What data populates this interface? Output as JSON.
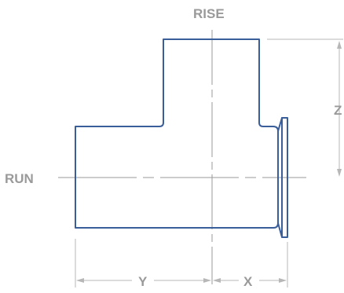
{
  "labels": {
    "rise": "RISE",
    "run": "RUN",
    "z": "Z",
    "y": "Y",
    "x": "X"
  },
  "colors": {
    "outline": "#3a5e9a",
    "centerline": "#9a9a9a",
    "dimension": "#b7b7b7",
    "label": "#9a9a9a"
  }
}
